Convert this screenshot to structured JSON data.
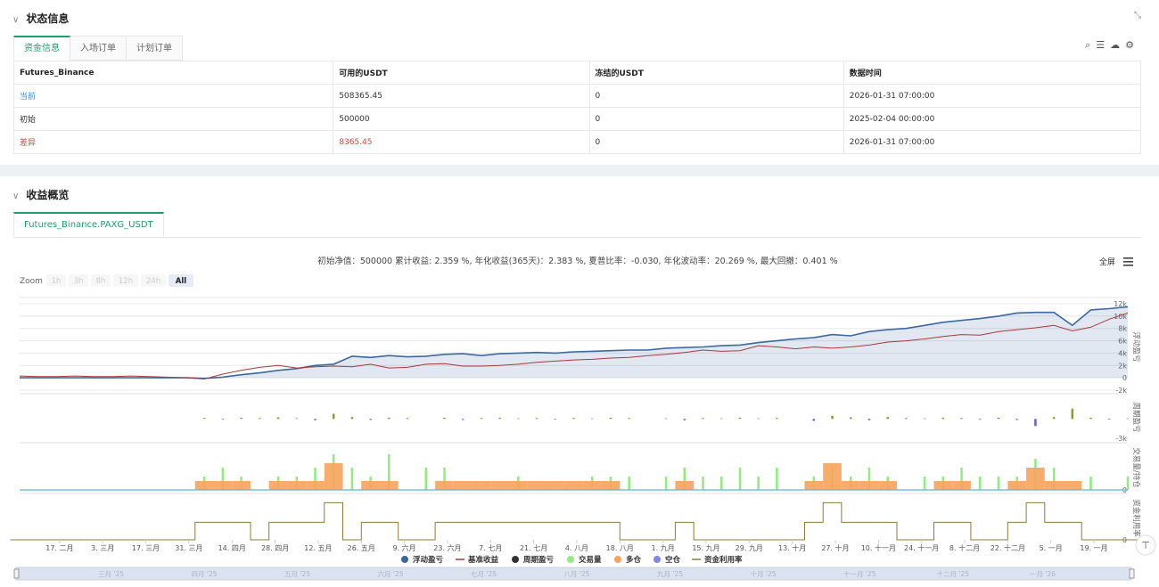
{
  "status": {
    "title": "状态信息",
    "tabs": [
      "资金信息",
      "入场订单",
      "计划订单"
    ],
    "table": {
      "header": [
        "Futures_Binance",
        "可用的USDT",
        "冻结的USDT",
        "数据时间"
      ],
      "rows": [
        [
          "当前",
          "508365.45",
          "0",
          "2026-01-31 07:00:00"
        ],
        [
          "初始",
          "500000",
          "0",
          "2025-02-04 00:00:00"
        ],
        [
          "差异",
          "8365.45",
          "0",
          "2026-01-31 07:00:00"
        ]
      ]
    }
  },
  "overview": {
    "title": "收益概览",
    "tab": "Futures_Binance.PAXG_USDT",
    "summary": "初始净值：500000 累计收益: 2.359 %, 年化收益(365天)：2.383 %, 夏普比率：-0.030, 年化波动率：20.269 %, 最大回撤：0.401 %",
    "fullscreen": "全屏",
    "zoom_label": "Zoom",
    "zoom_buttons": [
      "1h",
      "3h",
      "8h",
      "12h",
      "24h",
      "All"
    ]
  },
  "chart_data": {
    "type": "line",
    "xtick_labels": [
      "17. 二月",
      "3. 三月",
      "17. 三月",
      "31. 三月",
      "14. 四月",
      "28. 四月",
      "12. 五月",
      "26. 五月",
      "9. 六月",
      "23. 六月",
      "7. 七月",
      "21. 七月",
      "4. 八月",
      "18. 八月",
      "1. 九月",
      "15. 九月",
      "29. 九月",
      "13. 十月",
      "27. 十月",
      "10. 十一月",
      "24. 十一月",
      "8. 十二月",
      "22. 十二月",
      "5. 一月",
      "19. 一月"
    ],
    "navigator_labels": [
      "三月 '25",
      "四月 '25",
      "五月 '25",
      "六月 '25",
      "七月 '25",
      "八月 '25",
      "九月 '25",
      "十月 '25",
      "十一月 '25",
      "十二月 '25",
      "一月 '26"
    ],
    "panes": [
      {
        "axis_title": "浮动盈亏",
        "ylim": [
          -2000,
          12000
        ],
        "grid": true,
        "yticks": [
          {
            "value": 12000,
            "label": "12k"
          },
          {
            "value": 10000,
            "label": "10k"
          },
          {
            "value": 8000,
            "label": "8k"
          },
          {
            "value": 6000,
            "label": "6k"
          },
          {
            "value": 4000,
            "label": "4k"
          },
          {
            "value": 2000,
            "label": "2k"
          },
          0,
          {
            "value": -2000,
            "label": "-2k"
          }
        ],
        "series": [
          {
            "name": "浮动盈亏",
            "type": "area",
            "color": "#3b68a3",
            "values": [
              0,
              0,
              0,
              0,
              0,
              0,
              0,
              0,
              0,
              0,
              -100,
              100,
              500,
              800,
              1200,
              1500,
              2000,
              2200,
              3500,
              3300,
              3600,
              3400,
              3500,
              3800,
              3900,
              3600,
              3900,
              4000,
              4100,
              4000,
              4200,
              4300,
              4400,
              4500,
              4500,
              4800,
              4900,
              5000,
              5200,
              5300,
              5700,
              6000,
              6300,
              6500,
              7000,
              6800,
              7500,
              7800,
              8000,
              8500,
              9000,
              9300,
              9600,
              10000,
              10500,
              10600,
              10600,
              8500,
              11000,
              11200,
              11500
            ]
          },
          {
            "name": "基准收益",
            "type": "line",
            "color": "#a83a3a",
            "values": [
              300,
              200,
              200,
              300,
              200,
              200,
              300,
              200,
              100,
              0,
              -200,
              600,
              1200,
              1700,
              2000,
              1600,
              1800,
              1900,
              1800,
              2200,
              1600,
              1700,
              2200,
              2300,
              1900,
              1900,
              2000,
              2200,
              2500,
              2700,
              2900,
              3000,
              3200,
              3300,
              3600,
              3800,
              4100,
              4500,
              4300,
              4400,
              5200,
              5000,
              4700,
              5000,
              4800,
              5000,
              5300,
              5800,
              6000,
              6300,
              6700,
              7000,
              6900,
              7500,
              7800,
              8100,
              8500,
              7600,
              8200,
              9500,
              10500
            ]
          }
        ]
      },
      {
        "axis_title": "周期盈亏",
        "ylim": [
          -3000,
          3500
        ],
        "grid": false,
        "yticks": [
          {
            "value": -3000,
            "label": "-3k"
          }
        ],
        "series": [
          {
            "name": "周期盈亏",
            "type": "column",
            "color": "#333333",
            "up_color": "#8c9b2c",
            "down_color": "#6a5acd",
            "values": [
              0,
              0,
              0,
              0,
              0,
              0,
              0,
              0,
              0,
              0,
              150,
              -100,
              200,
              150,
              250,
              120,
              -200,
              800,
              300,
              -150,
              200,
              150,
              0,
              200,
              -150,
              150,
              200,
              100,
              150,
              -100,
              150,
              100,
              200,
              150,
              0,
              100,
              -200,
              150,
              100,
              200,
              100,
              150,
              0,
              -300,
              500,
              250,
              -200,
              300,
              150,
              100,
              200,
              150,
              -100,
              200,
              -150,
              -1100,
              300,
              1600,
              200,
              -100,
              100
            ]
          }
        ]
      },
      {
        "axis_title": "交易量/持仓",
        "ylim": [
          0,
          10
        ],
        "grid": false,
        "yticks": [
          0
        ],
        "series": [
          {
            "name": "交易量",
            "type": "column",
            "color": "#90ed7d",
            "values": [
              0,
              0,
              0,
              0,
              0,
              0,
              0,
              0,
              0,
              0,
              3,
              5,
              3,
              0,
              3,
              3,
              5,
              8,
              5,
              3,
              8,
              0,
              5,
              5,
              0,
              0,
              0,
              3,
              0,
              0,
              0,
              3,
              3,
              3,
              0,
              3,
              5,
              3,
              3,
              5,
              3,
              5,
              0,
              3,
              5,
              3,
              5,
              3,
              0,
              3,
              3,
              5,
              3,
              3,
              3,
              7,
              5,
              0,
              3,
              0,
              3
            ]
          },
          {
            "name": "多仓",
            "type": "block",
            "color": "#f7a35c",
            "values": [
              0,
              0,
              0,
              0,
              0,
              0,
              0,
              0,
              0,
              0,
              2,
              2,
              2,
              0,
              2,
              2,
              2,
              6,
              0,
              2,
              2,
              0,
              0,
              2,
              2,
              2,
              2,
              2,
              2,
              2,
              2,
              2,
              2,
              0,
              0,
              0,
              2,
              0,
              0,
              0,
              0,
              0,
              0,
              2,
              6,
              2,
              2,
              2,
              0,
              0,
              2,
              2,
              0,
              0,
              2,
              5,
              2,
              2,
              0,
              0,
              0
            ]
          },
          {
            "name": "空仓",
            "type": "block",
            "color": "#8085e9",
            "values": [
              0,
              0,
              0,
              0,
              0,
              0,
              0,
              0,
              0,
              0,
              0,
              0,
              0,
              0,
              0,
              0,
              0,
              0,
              0,
              0,
              0,
              0,
              0,
              0,
              0,
              0,
              0,
              0,
              0,
              0,
              0,
              0,
              0,
              0,
              0,
              0,
              0,
              0,
              0,
              0,
              0,
              0,
              0,
              0,
              0,
              0,
              0,
              0,
              0,
              0,
              0,
              0,
              0,
              0,
              0,
              0,
              0,
              0,
              0,
              0,
              0
            ]
          }
        ]
      },
      {
        "axis_title": "资金利用率",
        "ylim": [
          0,
          100
        ],
        "grid": false,
        "yticks": [
          0
        ],
        "series": [
          {
            "name": "资金利用率",
            "type": "step",
            "color": "#8b7b3a",
            "values": [
              0,
              0,
              0,
              0,
              0,
              0,
              0,
              0,
              0,
              0,
              40,
              40,
              40,
              0,
              40,
              40,
              40,
              85,
              0,
              40,
              40,
              0,
              0,
              40,
              40,
              40,
              40,
              40,
              40,
              40,
              40,
              40,
              40,
              0,
              0,
              0,
              40,
              0,
              0,
              0,
              0,
              0,
              0,
              40,
              85,
              40,
              40,
              40,
              0,
              0,
              40,
              40,
              0,
              0,
              40,
              85,
              40,
              40,
              0,
              0,
              0
            ]
          }
        ]
      }
    ]
  }
}
